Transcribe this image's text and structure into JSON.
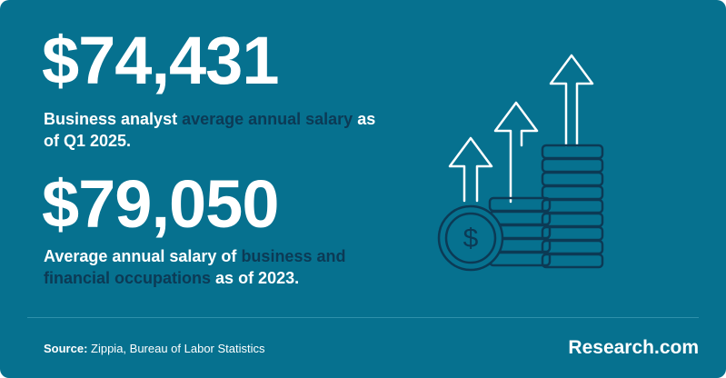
{
  "stat1": {
    "value": "$74,431",
    "desc_pre": "Business analyst ",
    "desc_link": "average annual salary",
    "desc_post": " as of Q1 2025."
  },
  "stat2": {
    "value": "$79,050",
    "desc_pre": "Average annual salary of ",
    "desc_link": "business and financial occupations",
    "desc_post": " as of 2023."
  },
  "footer": {
    "source_label": "Source:",
    "source_text": " Zippia, Bureau of Labor Statistics",
    "brand": "Research.com"
  },
  "illustration": {
    "icon": "salary-growth-coins-arrows",
    "coin_symbol": "$"
  },
  "colors": {
    "background": "#06718f",
    "text": "#ffffff",
    "highlight": "#0c3a55"
  }
}
